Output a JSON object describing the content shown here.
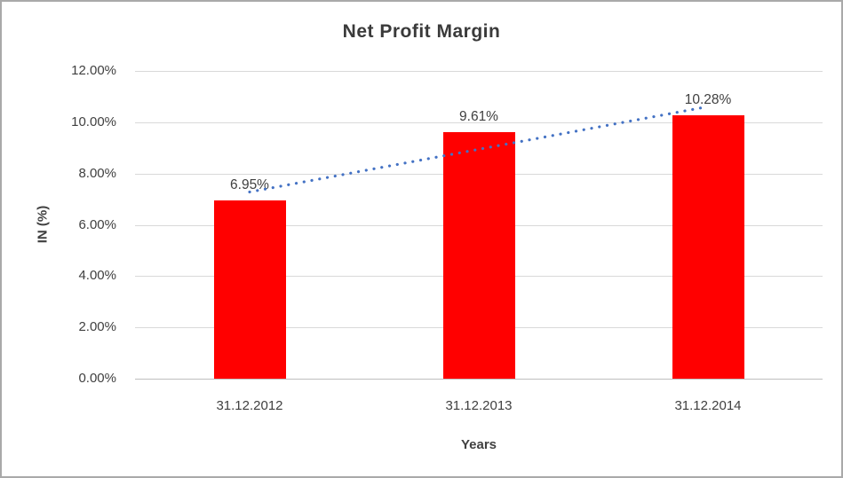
{
  "chart_data": {
    "type": "bar",
    "title": "Net Profit Margin",
    "xlabel": "Years",
    "ylabel": "IN (%)",
    "categories": [
      "31.12.2012",
      "31.12.2013",
      "31.12.2014"
    ],
    "values": [
      6.95,
      9.61,
      10.28
    ],
    "data_labels": [
      "6.95%",
      "9.61%",
      "10.28%"
    ],
    "y_ticks": [
      "0.00%",
      "2.00%",
      "4.00%",
      "6.00%",
      "8.00%",
      "10.00%",
      "12.00%"
    ],
    "y_tick_values": [
      0,
      2,
      4,
      6,
      8,
      10,
      12
    ],
    "ylim": [
      0,
      12
    ],
    "grid": true,
    "legend_position": "none",
    "bar_color": "#ff0000",
    "gridline_color": "#d9d9d9",
    "axis_line_color": "#bfbfbf",
    "text_color": "#404040",
    "trendline": {
      "type": "linear",
      "style": "dotted",
      "color": "#4472c4",
      "start_value": 7.28,
      "end_value": 10.61
    }
  }
}
